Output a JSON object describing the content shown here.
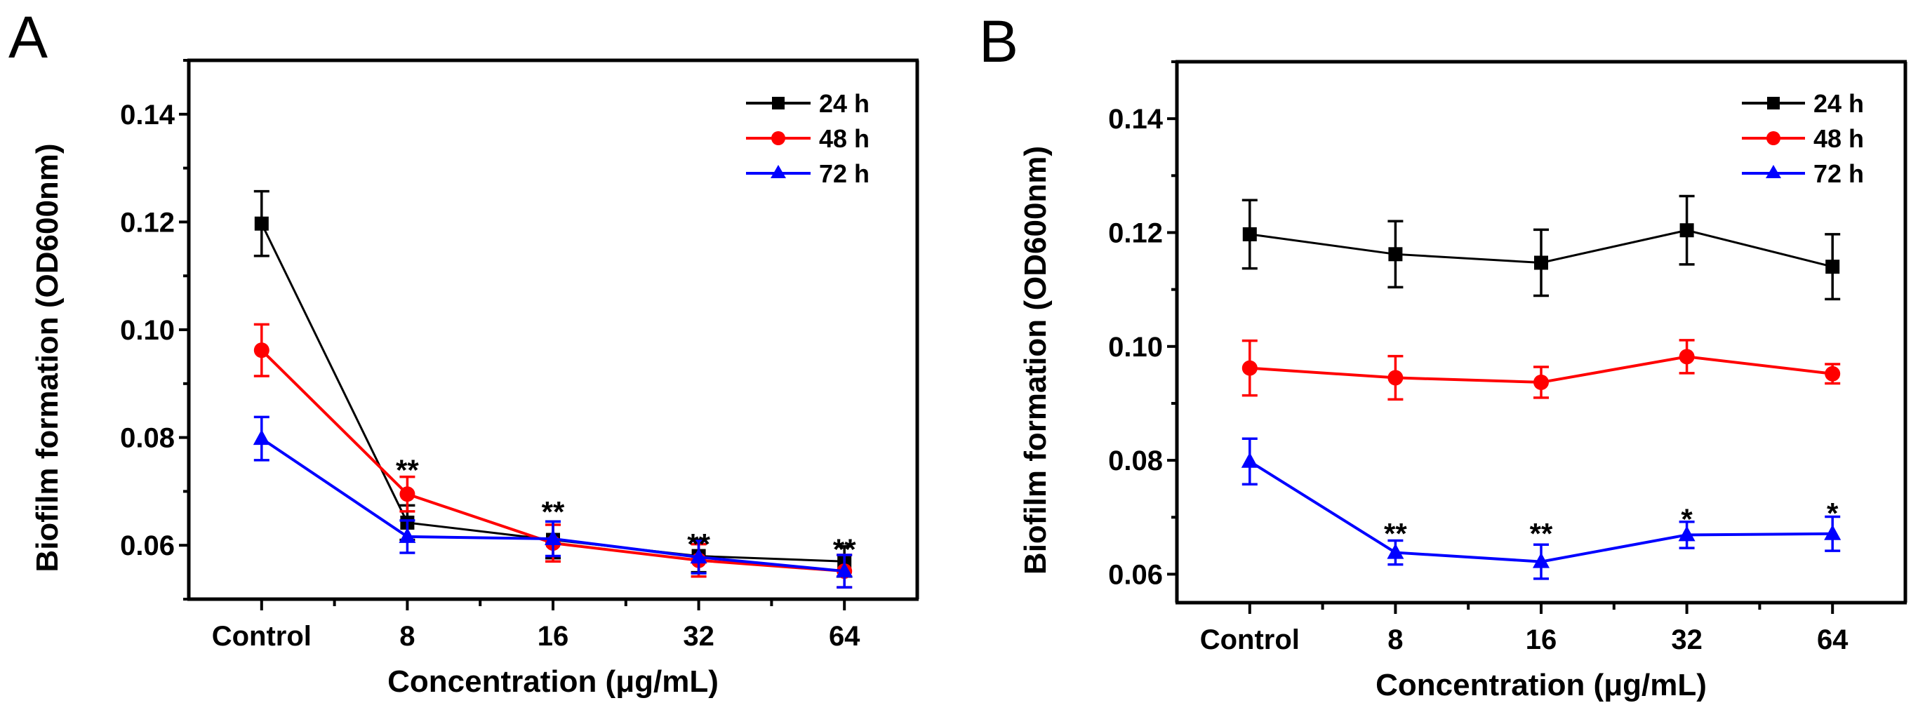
{
  "figure": {
    "panels": [
      "A",
      "B"
    ]
  },
  "colors": {
    "24h": "#000000",
    "48h": "#ff0000",
    "72h": "#0000ff",
    "axis": "#000000"
  },
  "chart_data": [
    {
      "type": "line",
      "panel_label": "A",
      "title": "",
      "xlabel": "Concentration (μg/mL)",
      "ylabel": "Biofilm formation (OD600nm)",
      "categories": [
        "Control",
        "8",
        "16",
        "32",
        "64"
      ],
      "ylim": [
        0.05,
        0.15
      ],
      "yticks": [
        0.06,
        0.08,
        0.1,
        0.12,
        0.14
      ],
      "ytick_labels": [
        "0.06",
        "0.08",
        "0.10",
        "0.12",
        "0.14"
      ],
      "grid": false,
      "legend_position": "top-right",
      "series": [
        {
          "name": "24 h",
          "key": "24h",
          "marker": "square",
          "values": [
            0.1197,
            0.0642,
            0.061,
            0.058,
            0.057
          ],
          "errors": [
            0.006,
            0.0032,
            0.0034,
            0.003,
            0.0028
          ]
        },
        {
          "name": "48 h",
          "key": "48h",
          "marker": "circle",
          "values": [
            0.0962,
            0.0695,
            0.0604,
            0.0572,
            0.0552
          ],
          "errors": [
            0.0048,
            0.0032,
            0.0034,
            0.003,
            0.003
          ]
        },
        {
          "name": "72 h",
          "key": "72h",
          "marker": "triangle",
          "values": [
            0.0798,
            0.0616,
            0.0612,
            0.0578,
            0.0552
          ],
          "errors": [
            0.004,
            0.003,
            0.0032,
            0.003,
            0.003
          ]
        }
      ],
      "annotations": [
        {
          "category": "8",
          "text": "**",
          "value": 0.0757
        },
        {
          "category": "16",
          "text": "**",
          "value": 0.068
        },
        {
          "category": "32",
          "text": "**",
          "value": 0.062
        },
        {
          "category": "64",
          "text": "**",
          "value": 0.061
        }
      ]
    },
    {
      "type": "line",
      "panel_label": "B",
      "title": "",
      "xlabel": "Concentration (μg/mL)",
      "ylabel": "Biofilm formation (OD600nm)",
      "categories": [
        "Control",
        "8",
        "16",
        "32",
        "64"
      ],
      "ylim": [
        0.055,
        0.15
      ],
      "yticks": [
        0.06,
        0.08,
        0.1,
        0.12,
        0.14
      ],
      "ytick_labels": [
        "0.06",
        "0.08",
        "0.10",
        "0.12",
        "0.14"
      ],
      "grid": false,
      "legend_position": "top-right",
      "series": [
        {
          "name": "24 h",
          "key": "24h",
          "marker": "square",
          "values": [
            0.1197,
            0.1162,
            0.1147,
            0.1204,
            0.114
          ],
          "errors": [
            0.006,
            0.0058,
            0.0058,
            0.006,
            0.0057
          ]
        },
        {
          "name": "48 h",
          "key": "48h",
          "marker": "circle",
          "values": [
            0.0962,
            0.0945,
            0.0937,
            0.0982,
            0.0952
          ],
          "errors": [
            0.0048,
            0.0038,
            0.0027,
            0.0029,
            0.0017
          ]
        },
        {
          "name": "72 h",
          "key": "72h",
          "marker": "triangle",
          "values": [
            0.0798,
            0.0638,
            0.0622,
            0.0669,
            0.0671
          ],
          "errors": [
            0.004,
            0.0021,
            0.003,
            0.0023,
            0.003
          ]
        }
      ],
      "annotations": [
        {
          "category": "8",
          "text": "**",
          "value": 0.0688
        },
        {
          "category": "16",
          "text": "**",
          "value": 0.0688
        },
        {
          "category": "32",
          "text": "*",
          "value": 0.0713
        },
        {
          "category": "64",
          "text": "*",
          "value": 0.0724
        }
      ]
    }
  ]
}
